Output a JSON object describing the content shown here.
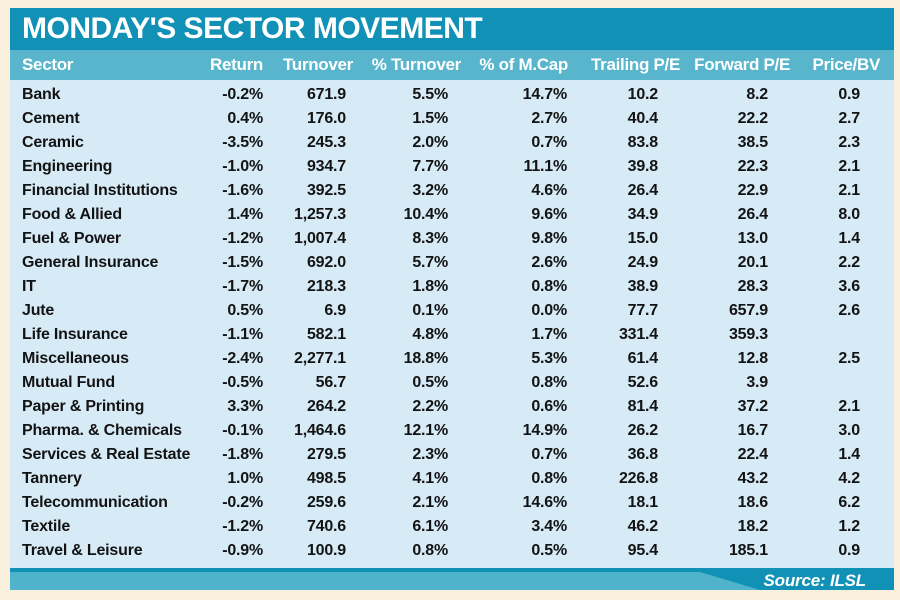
{
  "title": "MONDAY'S SECTOR MOVEMENT",
  "source": "Source: ILSL",
  "chart_data": {
    "type": "table",
    "title": "MONDAY'S SECTOR MOVEMENT",
    "columns": [
      "Sector",
      "Return",
      "Turnover",
      "% Turnover",
      "% of M.Cap",
      "Trailing P/E",
      "Forward P/E",
      "Price/BV"
    ],
    "rows": [
      [
        "Bank",
        "-0.2%",
        "671.9",
        "5.5%",
        "14.7%",
        "10.2",
        "8.2",
        "0.9"
      ],
      [
        "Cement",
        "0.4%",
        "176.0",
        "1.5%",
        "2.7%",
        "40.4",
        "22.2",
        "2.7"
      ],
      [
        "Ceramic",
        "-3.5%",
        "245.3",
        "2.0%",
        "0.7%",
        "83.8",
        "38.5",
        "2.3"
      ],
      [
        "Engineering",
        "-1.0%",
        "934.7",
        "7.7%",
        "11.1%",
        "39.8",
        "22.3",
        "2.1"
      ],
      [
        "Financial Institutions",
        "-1.6%",
        "392.5",
        "3.2%",
        "4.6%",
        "26.4",
        "22.9",
        "2.1"
      ],
      [
        "Food & Allied",
        "1.4%",
        "1,257.3",
        "10.4%",
        "9.6%",
        "34.9",
        "26.4",
        "8.0"
      ],
      [
        "Fuel & Power",
        "-1.2%",
        "1,007.4",
        "8.3%",
        "9.8%",
        "15.0",
        "13.0",
        "1.4"
      ],
      [
        "General Insurance",
        "-1.5%",
        "692.0",
        "5.7%",
        "2.6%",
        "24.9",
        "20.1",
        "2.2"
      ],
      [
        "IT",
        "-1.7%",
        "218.3",
        "1.8%",
        "0.8%",
        "38.9",
        "28.3",
        "3.6"
      ],
      [
        "Jute",
        "0.5%",
        "6.9",
        "0.1%",
        "0.0%",
        "77.7",
        "657.9",
        "2.6"
      ],
      [
        "Life Insurance",
        "-1.1%",
        "582.1",
        "4.8%",
        "1.7%",
        "331.4",
        "359.3",
        ""
      ],
      [
        "Miscellaneous",
        "-2.4%",
        "2,277.1",
        "18.8%",
        "5.3%",
        "61.4",
        "12.8",
        "2.5"
      ],
      [
        "Mutual Fund",
        "-0.5%",
        "56.7",
        "0.5%",
        "0.8%",
        "52.6",
        "3.9",
        ""
      ],
      [
        "Paper & Printing",
        "3.3%",
        "264.2",
        "2.2%",
        "0.6%",
        "81.4",
        "37.2",
        "2.1"
      ],
      [
        "Pharma. & Chemicals",
        "-0.1%",
        "1,464.6",
        "12.1%",
        "14.9%",
        "26.2",
        "16.7",
        "3.0"
      ],
      [
        "Services & Real Estate",
        "-1.8%",
        "279.5",
        "2.3%",
        "0.7%",
        "36.8",
        "22.4",
        "1.4"
      ],
      [
        "Tannery",
        "1.0%",
        "498.5",
        "4.1%",
        "0.8%",
        "226.8",
        "43.2",
        "4.2"
      ],
      [
        "Telecommunication",
        "-0.2%",
        "259.6",
        "2.1%",
        "14.6%",
        "18.1",
        "18.6",
        "6.2"
      ],
      [
        "Textile",
        "-1.2%",
        "740.6",
        "6.1%",
        "3.4%",
        "46.2",
        "18.2",
        "1.2"
      ],
      [
        "Travel & Leisure",
        "-0.9%",
        "100.9",
        "0.8%",
        "0.5%",
        "95.4",
        "185.1",
        "0.9"
      ]
    ]
  },
  "colors": {
    "title_bar": "#1191b5",
    "header_row": "#58b5cc",
    "body_bg": "#d7ebf7",
    "frame_bg": "#f8f0dd",
    "footer_accent": "#4fb3cb",
    "text": "#131313",
    "header_text": "#ffffff"
  }
}
